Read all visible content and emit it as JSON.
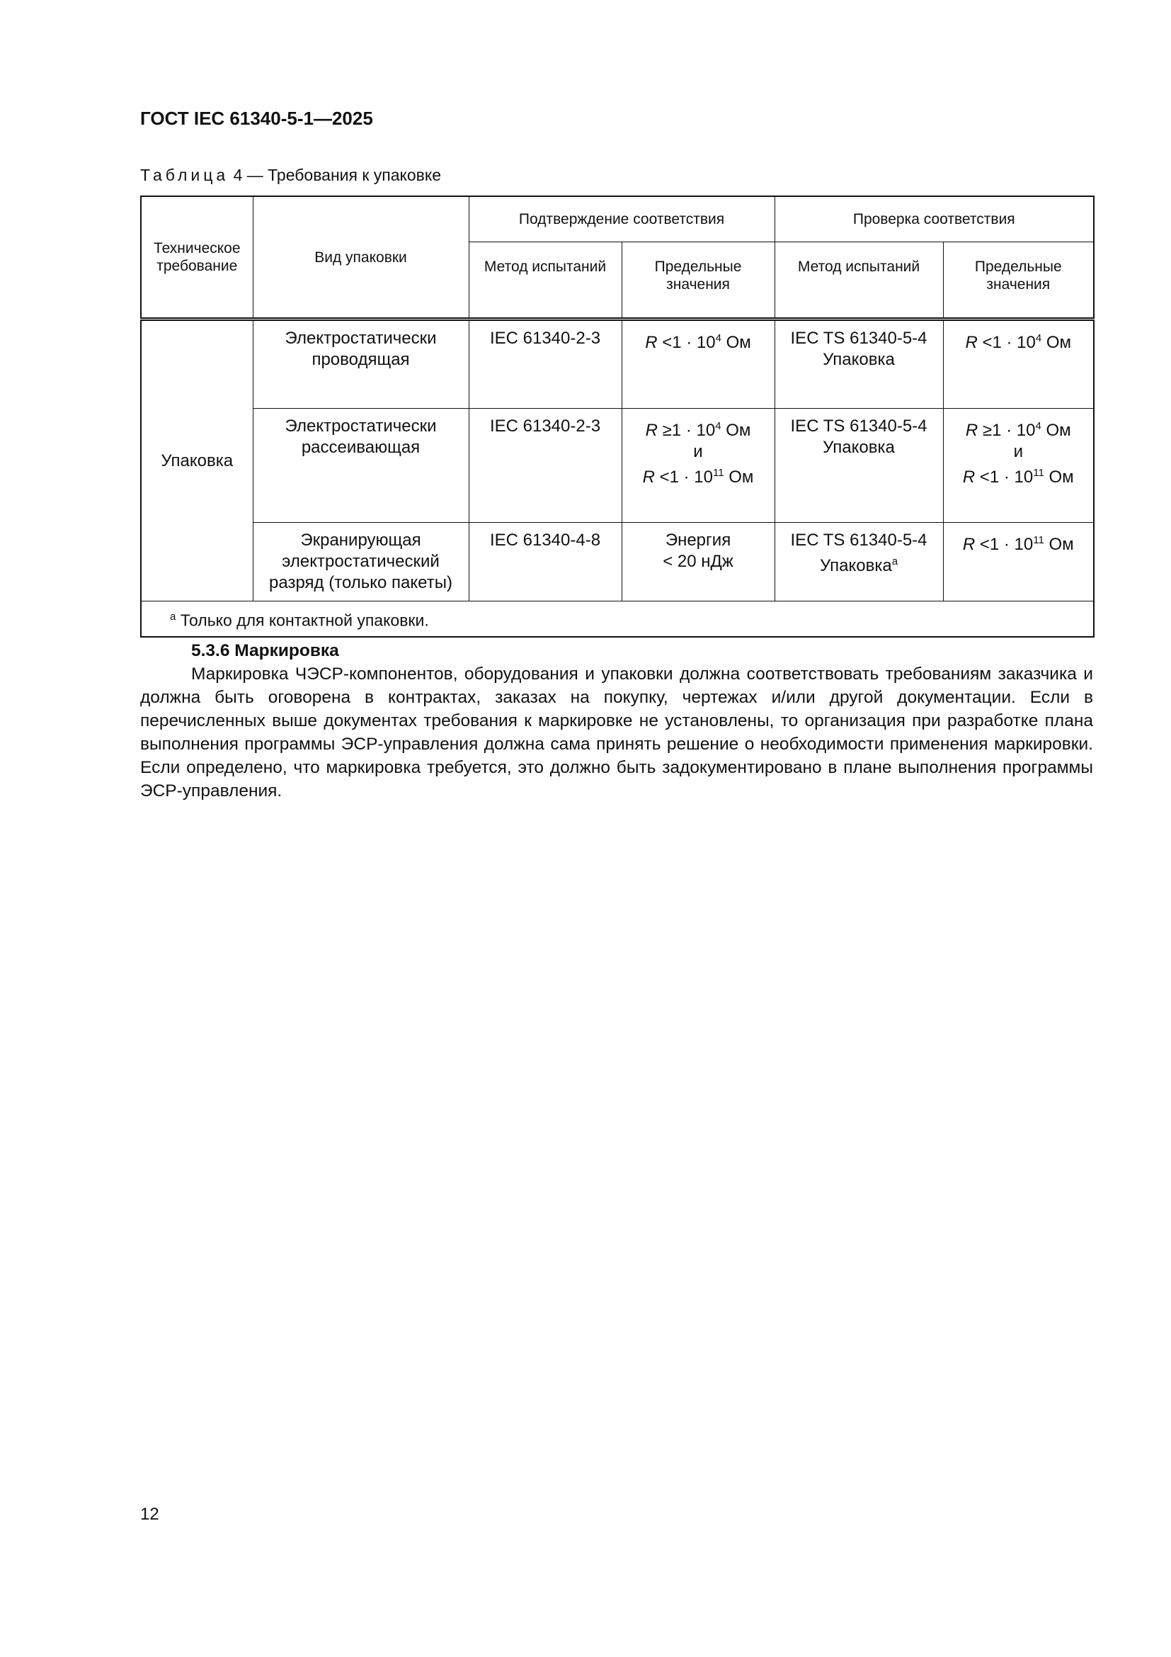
{
  "header": {
    "doc_title": "ГОСТ IEC 61340-5-1—2025"
  },
  "table": {
    "caption_prefix": "Таблица",
    "caption_rest": "4 — Требования к упаковке",
    "headers": {
      "tech_requirement": "Техническое требование",
      "package_type": "Вид упаковки",
      "conformity_confirmation": "Подтверждение соответствия",
      "conformity_check": "Проверка соответствия",
      "test_method": "Метод испытаний",
      "limit_values": "Предельные значения"
    },
    "requirement": "Упаковка",
    "rows": [
      {
        "type": "Электростатически проводящая",
        "method1": "IEC 61340-2-3",
        "limit1": [
          "R <1 · 10^4 Ом"
        ],
        "method2": "IEC TS 61340-5-4 Упаковка",
        "limit2": [
          "R <1 · 10^4 Ом"
        ]
      },
      {
        "type": "Электростатически рассеивающая",
        "method1": "IEC 61340-2-3",
        "limit1": [
          "R ≥1 · 10^4 Ом",
          "и",
          "R <1 · 10^11 Ом"
        ],
        "method2": "IEC TS 61340-5-4 Упаковка",
        "limit2": [
          "R ≥1 · 10^4 Ом",
          "и",
          "R <1 · 10^11 Ом"
        ]
      },
      {
        "type": "Экранирующая электростатический разряд (только пакеты)",
        "method1": "IEC 61340-4-8",
        "limit1": [
          "Энергия",
          "< 20 нДж"
        ],
        "method2": "IEC TS 61340-5-4 Упаковка",
        "method2_note": "a",
        "limit2": [
          "R <1 · 10^11 Ом"
        ]
      }
    ],
    "footnote_mark": "a",
    "footnote": "Только для контактной упаковки."
  },
  "section": {
    "number_title": "5.3.6 Маркировка",
    "text": "Маркировка ЧЭСР-компонентов, оборудования и упаковки должна соответствовать требованиям заказчика и должна быть оговорена в контрактах, заказах на покупку, чертежах и/или другой документации. Если в перечисленных выше документах требования к маркировке не установлены, то организация при разработке плана выполнения программы ЭСР-управления должна сама принять решение о необходимости применения маркировки. Если определено, что маркировка требуется, это должно быть задокументировано в плане выполнения программы ЭСР-управления."
  },
  "footer": {
    "page_number": "12"
  }
}
